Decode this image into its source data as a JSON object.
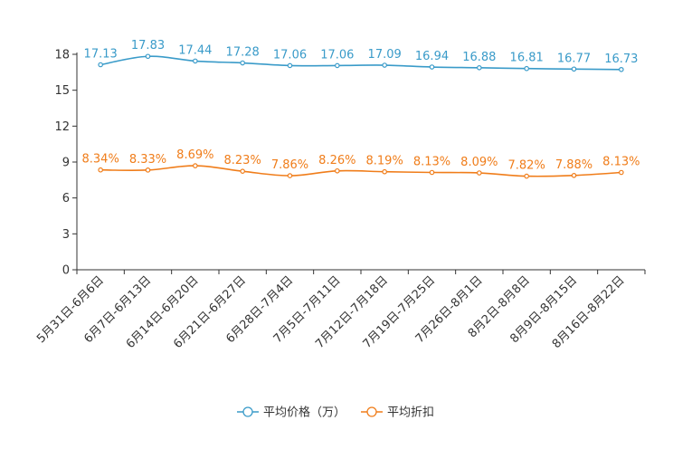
{
  "chart_data": {
    "type": "line",
    "title": "",
    "xlabel": "",
    "ylabel": "",
    "ylim": [
      0,
      18
    ],
    "yticks": [
      0,
      3,
      6,
      9,
      12,
      15,
      18
    ],
    "grid": false,
    "legend_position": "bottom",
    "categories": [
      "5月31日-6月6日",
      "6月7日-6月13日",
      "6月14日-6月20日",
      "6月21日-6月27日",
      "6月28日-7月4日",
      "7月5日-7月11日",
      "7月12日-7月18日",
      "7月19日-7月25日",
      "7月26日-8月1日",
      "8月2日-8月8日",
      "8月9日-8月15日",
      "8月16日-8月22日"
    ],
    "series": [
      {
        "name": "平均价格（万）",
        "color": "#3a9bc9",
        "values": [
          17.13,
          17.83,
          17.44,
          17.28,
          17.06,
          17.06,
          17.09,
          16.94,
          16.88,
          16.81,
          16.77,
          16.73
        ],
        "labels": [
          "17.13",
          "17.83",
          "17.44",
          "17.28",
          "17.06",
          "17.06",
          "17.09",
          "16.94",
          "16.88",
          "16.81",
          "16.77",
          "16.73"
        ]
      },
      {
        "name": "平均折扣",
        "color": "#f07d1a",
        "values": [
          8.34,
          8.33,
          8.69,
          8.23,
          7.86,
          8.26,
          8.19,
          8.13,
          8.09,
          7.82,
          7.88,
          8.13
        ],
        "labels": [
          "8.34%",
          "8.33%",
          "8.69%",
          "8.23%",
          "7.86%",
          "8.26%",
          "8.19%",
          "8.13%",
          "8.09%",
          "7.82%",
          "7.88%",
          "8.13%"
        ]
      }
    ]
  }
}
